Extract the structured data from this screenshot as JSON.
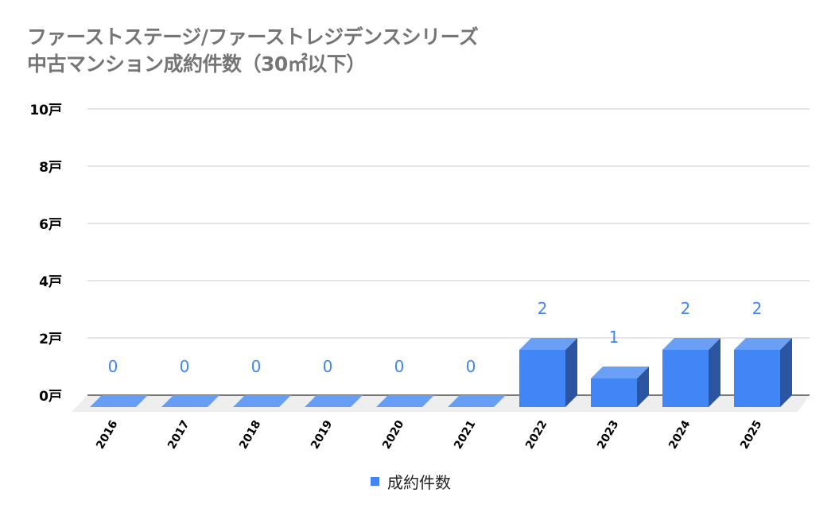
{
  "title": {
    "line1": "ファーストステージ/ファーストレジデンスシリーズ",
    "line2": "中古マンション成約件数（30㎡以下）"
  },
  "colors": {
    "bar_front": "#4285f4",
    "bar_top": "#6a9ff5",
    "bar_side": "#2b55a0",
    "zero_bar": "#679ef5",
    "floor": "#eeeeee",
    "grid": "#cccccc",
    "axis": "#333333",
    "data_label": "#4285f4",
    "title": "#757575"
  },
  "legend": {
    "label": "成約件数",
    "color": "#4285f4"
  },
  "chart_data": {
    "type": "bar",
    "variant": "3d-column",
    "title": "ファーストステージ/ファーストレジデンスシリーズ 中古マンション成約件数（30㎡以下）",
    "xlabel": "",
    "ylabel": "",
    "categories": [
      "2016",
      "2017",
      "2018",
      "2019",
      "2020",
      "2021",
      "2022",
      "2023",
      "2024",
      "2025"
    ],
    "series": [
      {
        "name": "成約件数",
        "values": [
          0,
          0,
          0,
          0,
          0,
          0,
          2,
          1,
          2,
          2
        ]
      }
    ],
    "data_labels": [
      "0",
      "0",
      "0",
      "0",
      "0",
      "0",
      "2",
      "1",
      "2",
      "2"
    ],
    "ylim": [
      0,
      10
    ],
    "yticks": [
      0,
      2,
      4,
      6,
      8,
      10
    ],
    "ytick_labels": [
      "0戸",
      "2戸",
      "4戸",
      "6戸",
      "8戸",
      "10戸"
    ],
    "grid": true,
    "legend_position": "bottom"
  }
}
